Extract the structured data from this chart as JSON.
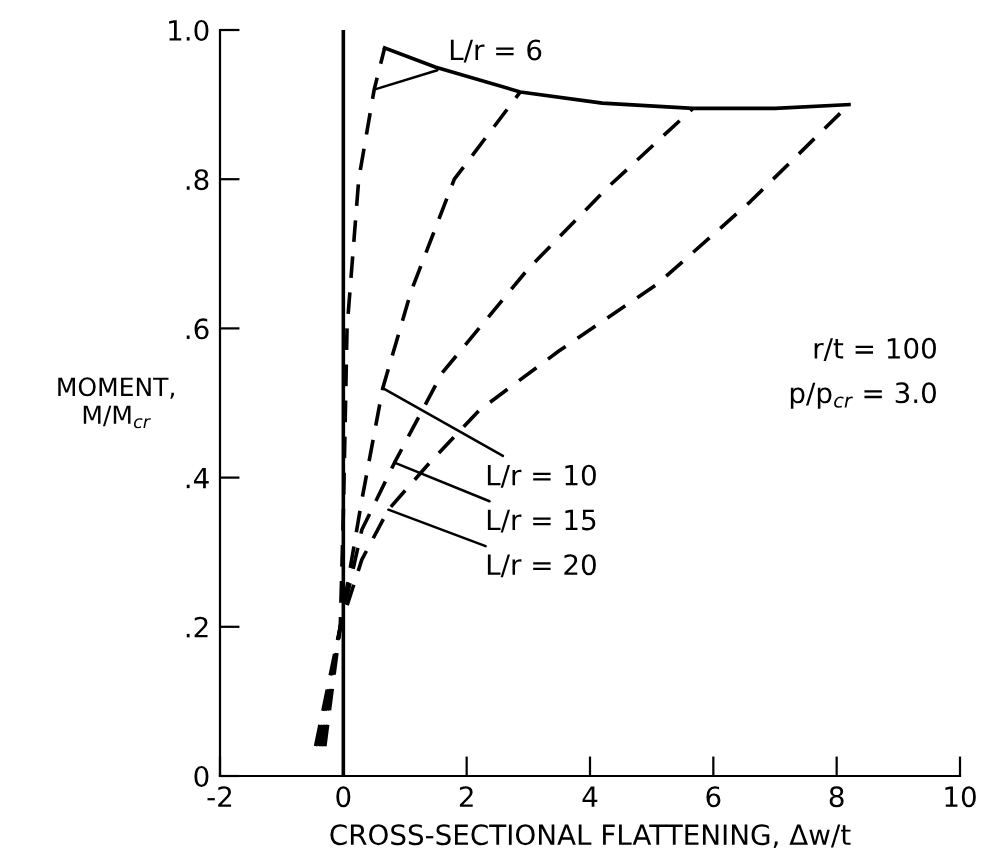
{
  "chart_data": {
    "type": "line",
    "xlabel": "CROSS-SECTIONAL FLATTENING, Δw/t",
    "ylabel": "MOMENT,\nM/M$_{cr}$",
    "xlim": [
      -2,
      10
    ],
    "xticks": [
      -2,
      0,
      2,
      4,
      6,
      8,
      10
    ],
    "ylim": [
      0,
      1.0
    ],
    "yticks": [
      {
        "value": 0,
        "label": "0"
      },
      {
        "value": 0.2,
        "label": ".2"
      },
      {
        "value": 0.4,
        "label": ".4"
      },
      {
        "value": 0.6,
        "label": ".6"
      },
      {
        "value": 0.8,
        "label": ".8"
      },
      {
        "value": 1.0,
        "label": "1.0"
      }
    ],
    "grid": false,
    "legend": false,
    "marker": "none",
    "ref_lines": [
      {
        "axis": "x",
        "value": 0,
        "line_style": "solid",
        "color": "#000000"
      }
    ],
    "series": [
      {
        "color": "#000000",
        "line_style": "solid",
        "x": [
          0.67,
          1.5,
          2.87,
          4.2,
          5.67,
          7.0,
          8.2
        ],
        "values": [
          0.976,
          0.95,
          0.917,
          0.902,
          0.895,
          0.895,
          0.9
        ]
      },
      {
        "color": "#000000",
        "line_style": "dashed",
        "x": [
          -0.3,
          -0.05,
          0.0,
          0.06,
          0.25,
          0.5,
          0.67
        ],
        "values": [
          0.04,
          0.2,
          0.35,
          0.6,
          0.8,
          0.92,
          0.976
        ]
      },
      {
        "color": "#000000",
        "line_style": "dashed",
        "x": [
          -0.35,
          -0.05,
          0.3,
          0.64,
          1.1,
          1.8,
          2.87
        ],
        "values": [
          0.04,
          0.2,
          0.37,
          0.52,
          0.65,
          0.8,
          0.917
        ]
      },
      {
        "color": "#000000",
        "line_style": "dashed",
        "x": [
          -0.4,
          -0.05,
          0.3,
          0.83,
          1.6,
          3.0,
          4.3,
          5.67
        ],
        "values": [
          0.04,
          0.2,
          0.33,
          0.42,
          0.54,
          0.68,
          0.79,
          0.895
        ]
      },
      {
        "color": "#000000",
        "line_style": "dashed",
        "x": [
          -0.45,
          -0.05,
          0.3,
          0.73,
          1.4,
          2.2,
          3.5,
          5.1,
          6.6,
          8.2
        ],
        "values": [
          0.04,
          0.2,
          0.29,
          0.357,
          0.42,
          0.49,
          0.57,
          0.66,
          0.77,
          0.9
        ]
      }
    ],
    "annotations": [
      {
        "text": "L/r = 6",
        "x": 0.5,
        "y": 0.92
      },
      {
        "text": "L/r = 10",
        "x": 0.64,
        "y": 0.52
      },
      {
        "text": "L/r = 15",
        "x": 0.83,
        "y": 0.42
      },
      {
        "text": "L/r = 20",
        "x": 0.73,
        "y": 0.357
      },
      "r/t = 100",
      "p/p$_{cr}$ = 3.0"
    ]
  }
}
